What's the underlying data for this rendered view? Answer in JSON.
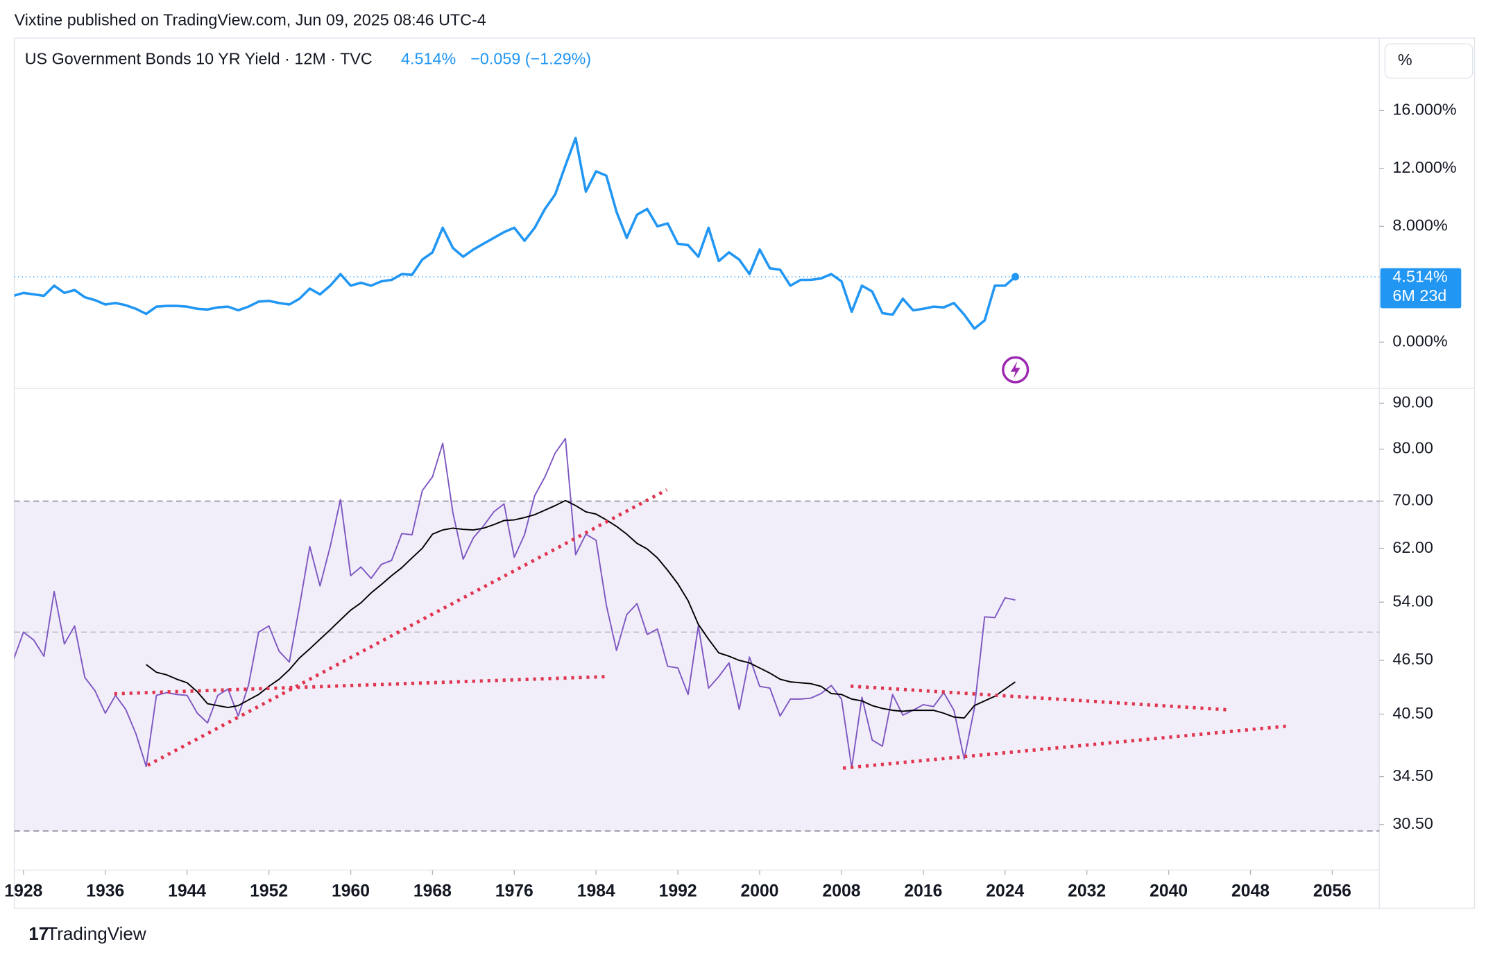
{
  "header": "Vixtine published on TradingView.com, Jun 09, 2025 08:46 UTC-4",
  "footer": "TradingView",
  "chart_data": [
    {
      "type": "line",
      "title": "US Government Bonds 10 YR Yield · 12M · TVC",
      "legend_value": "4.514%",
      "change": "−0.059 (−1.29%)",
      "unit": "%",
      "last_label": "4.514%",
      "countdown": "6M 23d",
      "x": [
        1927,
        1928,
        1929,
        1930,
        1931,
        1932,
        1933,
        1934,
        1935,
        1936,
        1937,
        1938,
        1939,
        1940,
        1941,
        1942,
        1943,
        1944,
        1945,
        1946,
        1947,
        1948,
        1949,
        1950,
        1951,
        1952,
        1953,
        1954,
        1955,
        1956,
        1957,
        1958,
        1959,
        1960,
        1961,
        1962,
        1963,
        1964,
        1965,
        1966,
        1967,
        1968,
        1969,
        1970,
        1971,
        1972,
        1973,
        1974,
        1975,
        1976,
        1977,
        1978,
        1979,
        1980,
        1981,
        1982,
        1983,
        1984,
        1985,
        1986,
        1987,
        1988,
        1989,
        1990,
        1991,
        1992,
        1993,
        1994,
        1995,
        1996,
        1997,
        1998,
        1999,
        2000,
        2001,
        2002,
        2003,
        2004,
        2005,
        2006,
        2007,
        2008,
        2009,
        2010,
        2011,
        2012,
        2013,
        2014,
        2015,
        2016,
        2017,
        2018,
        2019,
        2020,
        2021,
        2022,
        2023,
        2024,
        2025
      ],
      "series": [
        {
          "color": "#2196f3",
          "values": [
            3.2,
            3.4,
            3.3,
            3.2,
            3.9,
            3.4,
            3.6,
            3.1,
            2.9,
            2.6,
            2.7,
            2.55,
            2.3,
            1.95,
            2.45,
            2.5,
            2.5,
            2.45,
            2.3,
            2.25,
            2.4,
            2.45,
            2.2,
            2.45,
            2.8,
            2.85,
            2.7,
            2.6,
            3.0,
            3.7,
            3.3,
            3.9,
            4.7,
            3.9,
            4.1,
            3.9,
            4.2,
            4.3,
            4.7,
            4.65,
            5.7,
            6.2,
            7.9,
            6.5,
            5.9,
            6.4,
            6.8,
            7.2,
            7.6,
            7.9,
            7.0,
            7.9,
            9.2,
            10.2,
            12.2,
            14.1,
            10.4,
            11.8,
            11.5,
            9.0,
            7.2,
            8.8,
            9.2,
            8.0,
            8.2,
            6.8,
            6.7,
            5.9,
            7.9,
            5.6,
            6.2,
            5.7,
            4.7,
            6.4,
            5.1,
            5.0,
            3.9,
            4.3,
            4.3,
            4.4,
            4.7,
            4.2,
            2.1,
            3.9,
            3.5,
            2.0,
            1.9,
            3.0,
            2.2,
            2.3,
            2.45,
            2.4,
            2.7,
            1.9,
            0.93,
            1.5,
            3.9,
            3.9,
            4.514
          ]
        }
      ],
      "xlim": [
        1927.1,
        2060.6
      ],
      "ylim": [
        -3.16,
        21
      ],
      "yticks": [
        {
          "value": 16,
          "label": "16.000%"
        },
        {
          "value": 12,
          "label": "12.000%"
        },
        {
          "value": 8,
          "label": "8.000%"
        },
        {
          "value": 0,
          "label": "0.000%"
        }
      ]
    },
    {
      "type": "line",
      "x": [
        1927,
        1928,
        1929,
        1930,
        1931,
        1932,
        1933,
        1934,
        1935,
        1936,
        1937,
        1938,
        1939,
        1940,
        1941,
        1942,
        1943,
        1944,
        1945,
        1946,
        1947,
        1948,
        1949,
        1950,
        1951,
        1952,
        1953,
        1954,
        1955,
        1956,
        1957,
        1958,
        1959,
        1960,
        1961,
        1962,
        1963,
        1964,
        1965,
        1966,
        1967,
        1968,
        1969,
        1970,
        1971,
        1972,
        1973,
        1974,
        1975,
        1976,
        1977,
        1978,
        1979,
        1980,
        1981,
        1982,
        1983,
        1984,
        1985,
        1986,
        1987,
        1988,
        1989,
        1990,
        1991,
        1992,
        1993,
        1994,
        1995,
        1996,
        1997,
        1998,
        1999,
        2000,
        2001,
        2002,
        2003,
        2004,
        2005,
        2006,
        2007,
        2008,
        2009,
        2010,
        2011,
        2012,
        2013,
        2014,
        2015,
        2016,
        2017,
        2018,
        2019,
        2020,
        2021,
        2022,
        2023,
        2024,
        2025
      ],
      "series": [
        {
          "color": "#7e57c2",
          "values": [
            46.5,
            50,
            49,
            47,
            55.5,
            48.5,
            50.8,
            44.5,
            43,
            40.6,
            42.5,
            41,
            38.5,
            35.4,
            42.5,
            42.8,
            42.6,
            42.5,
            40.6,
            39.6,
            42.5,
            43.2,
            40.3,
            43.6,
            50,
            50.8,
            47.6,
            46.3,
            53.5,
            62.3,
            56.3,
            62.3,
            70.3,
            57.8,
            59.1,
            57.4,
            59.5,
            60.1,
            64.4,
            64.2,
            71.9,
            74.5,
            81.2,
            67.9,
            60.3,
            63.7,
            65.7,
            68.1,
            69.5,
            60.6,
            64.2,
            71,
            74.5,
            79.2,
            82.2,
            61,
            64.3,
            63.3,
            53.6,
            47.7,
            52.3,
            53.8,
            49.7,
            50.4,
            45.8,
            45.6,
            42.6,
            50.8,
            43.3,
            44.6,
            46.2,
            41,
            46.9,
            43.5,
            43.3,
            40.3,
            42.1,
            42.1,
            42.2,
            42.7,
            43.6,
            42.1,
            35.3,
            42.3,
            37.9,
            37.3,
            42.6,
            40.4,
            40.9,
            41.5,
            41.3,
            42.8,
            40.9,
            36.1,
            41.1,
            52,
            51.9,
            54.6,
            54.3
          ]
        },
        {
          "color": "#000000",
          "values": [
            null,
            null,
            null,
            null,
            null,
            null,
            null,
            null,
            null,
            null,
            null,
            null,
            null,
            46.0,
            45.1,
            44.8,
            44.3,
            43.9,
            42.9,
            41.6,
            41.4,
            41.2,
            41.4,
            42.0,
            42.6,
            43.5,
            44.3,
            45.4,
            46.8,
            47.9,
            49.1,
            50.3,
            51.6,
            52.9,
            53.9,
            55.3,
            56.5,
            57.8,
            59.0,
            60.5,
            62.0,
            64.3,
            65.0,
            65.3,
            65.1,
            65.0,
            65.3,
            65.9,
            66.6,
            66.7,
            67.1,
            67.6,
            68.4,
            69.2,
            70.1,
            69.2,
            68.1,
            67.7,
            66.7,
            65.6,
            64.3,
            62.8,
            61.9,
            60.5,
            58.6,
            56.6,
            54.2,
            51.0,
            49.1,
            47.4,
            47.0,
            46.5,
            46.2,
            45.6,
            45.0,
            44.3,
            44.0,
            43.9,
            43.8,
            43.5,
            42.7,
            42.6,
            42.1,
            41.9,
            41.4,
            41.1,
            40.9,
            40.8,
            40.9,
            40.9,
            40.9,
            40.6,
            40.2,
            40.1,
            41.4,
            41.9,
            42.4,
            43.2,
            44.0
          ]
        }
      ],
      "levels": [
        70,
        50,
        30
      ],
      "log": true,
      "xlim": [
        1927.1,
        2060.6
      ],
      "ylim": [
        27.2,
        93.4
      ],
      "yticks": [
        {
          "value": 90,
          "label": "90.00"
        },
        {
          "value": 80,
          "label": "80.00"
        },
        {
          "value": 70,
          "label": "70.00"
        },
        {
          "value": 62,
          "label": "62.00"
        },
        {
          "value": 54,
          "label": "54.00"
        },
        {
          "value": 46.5,
          "label": "46.50"
        },
        {
          "value": 40.5,
          "label": "40.50"
        },
        {
          "value": 34.5,
          "label": "34.50"
        },
        {
          "value": 30.5,
          "label": "30.50"
        }
      ],
      "xticks": [
        1928,
        1936,
        1944,
        1952,
        1960,
        1968,
        1976,
        1984,
        1992,
        2000,
        2008,
        2016,
        2024,
        2032,
        2040,
        2048,
        2056
      ]
    }
  ]
}
